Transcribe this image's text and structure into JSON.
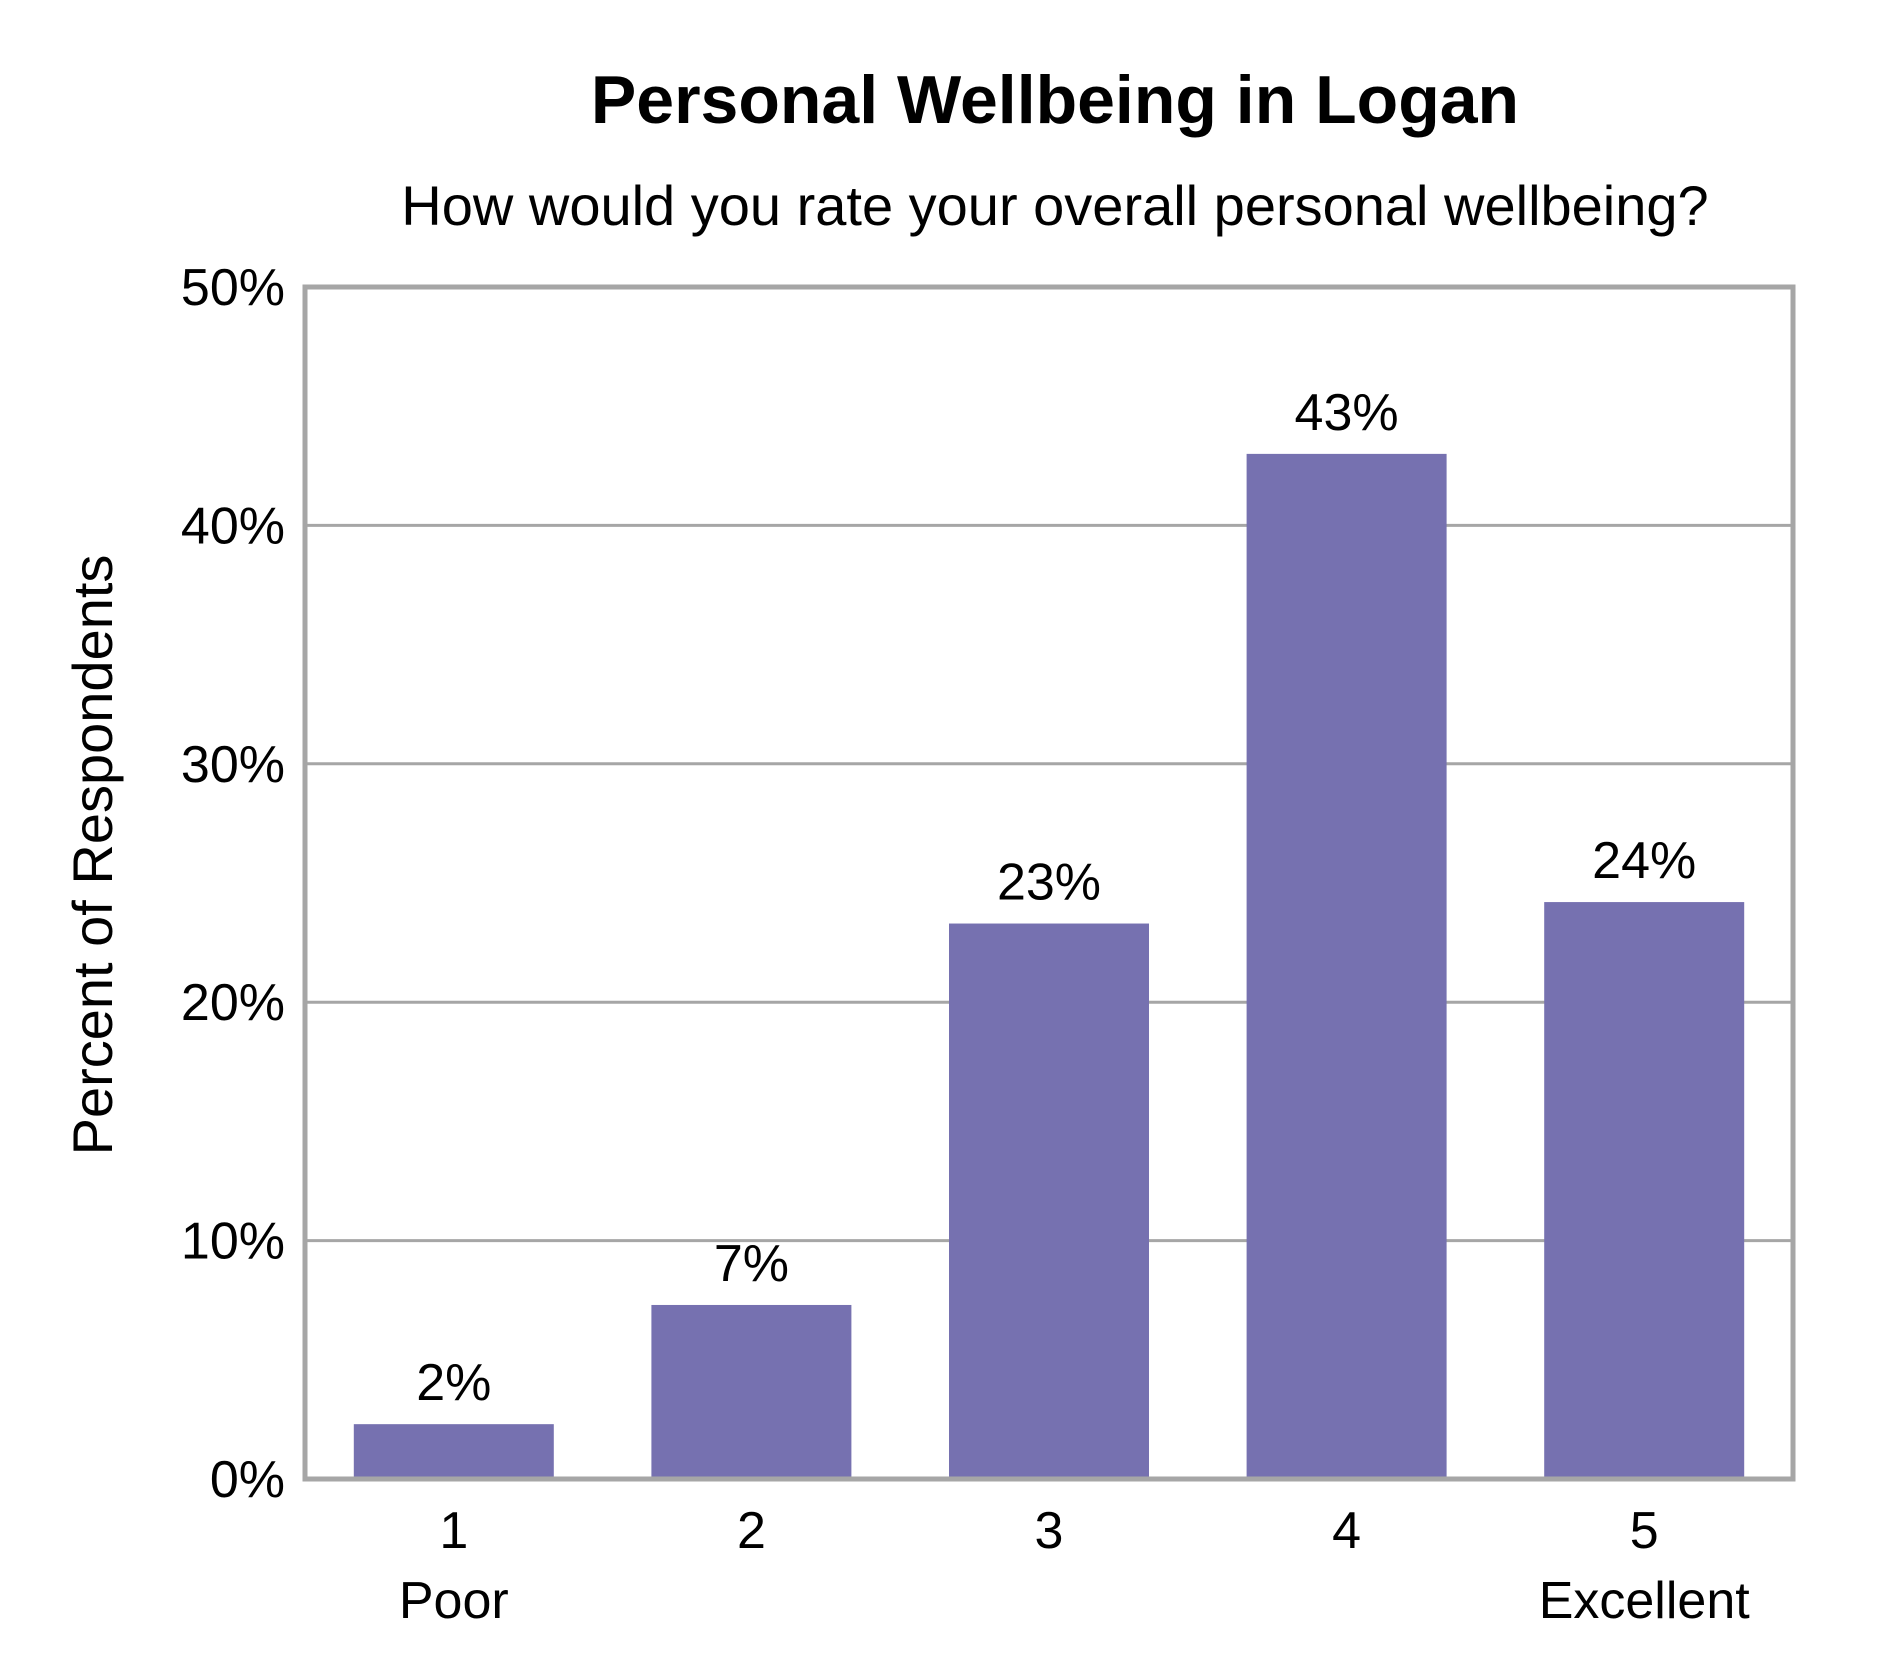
{
  "chart_data": {
    "type": "bar",
    "title": "Personal Wellbeing in Logan",
    "subtitle": "How would you rate your overall personal wellbeing?",
    "ylabel": "Percent of Respondents",
    "xlabel": "",
    "categories": [
      "1",
      "2",
      "3",
      "4",
      "5"
    ],
    "category_sublabels": [
      "Poor",
      "",
      "",
      "",
      "Excellent"
    ],
    "values": [
      2.3,
      7.3,
      23.3,
      43.0,
      24.2
    ],
    "data_labels": [
      "2%",
      "7%",
      "23%",
      "43%",
      "24%"
    ],
    "ylim": [
      0,
      50
    ],
    "y_ticks": [
      0,
      10,
      20,
      30,
      40,
      50
    ],
    "y_tick_labels": [
      "0%",
      "10%",
      "20%",
      "30%",
      "40%",
      "50%"
    ],
    "grid": true,
    "legend": "none",
    "colors": {
      "bar": "#7671B0",
      "grid": "#A6A6A6",
      "frame": "#A6A6A6"
    }
  }
}
